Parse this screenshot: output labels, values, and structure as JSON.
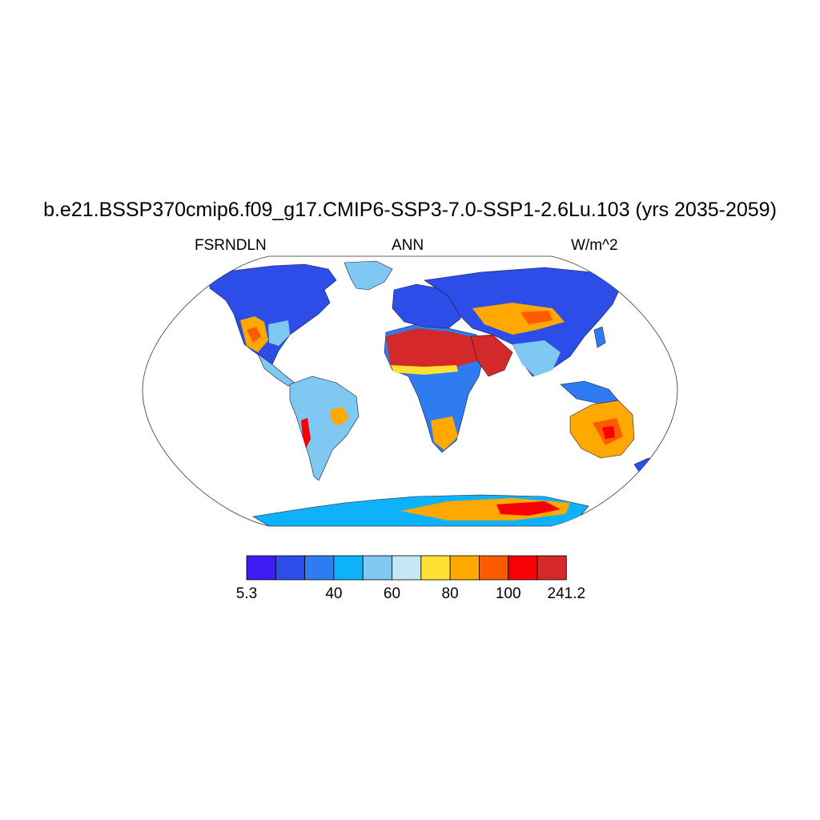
{
  "title": "b.e21.BSSP370cmip6.f09_g17.CMIP6-SSP3-7.0-SSP1-2.6Lu.103 (yrs 2035-2059)",
  "subtitle_left": "FSRNDLN",
  "subtitle_center": "ANN",
  "subtitle_right": "W/m^2",
  "colorbar": {
    "colors": [
      "#3e1cf5",
      "#2c4de8",
      "#2e7bf2",
      "#0eb2fb",
      "#7ec8f2",
      "#c6e7f7",
      "#ffe033",
      "#ffa800",
      "#ff5a00",
      "#f70006",
      "#d3292a"
    ],
    "labels": [
      {
        "text": "5.3",
        "boundary": 0
      },
      {
        "text": "40",
        "boundary": 3
      },
      {
        "text": "60",
        "boundary": 5
      },
      {
        "text": "80",
        "boundary": 7
      },
      {
        "text": "100",
        "boundary": 9
      },
      {
        "text": "241.2",
        "boundary": 11
      }
    ]
  },
  "map": {
    "projection": "robinson",
    "regions": [
      {
        "name": "antarctica-interior",
        "color": "#ff5a00"
      },
      {
        "name": "sahara",
        "color": "#d3292a"
      },
      {
        "name": "arabia",
        "color": "#d3292a"
      },
      {
        "name": "australia-center",
        "color": "#ff5a00"
      }
    ]
  }
}
